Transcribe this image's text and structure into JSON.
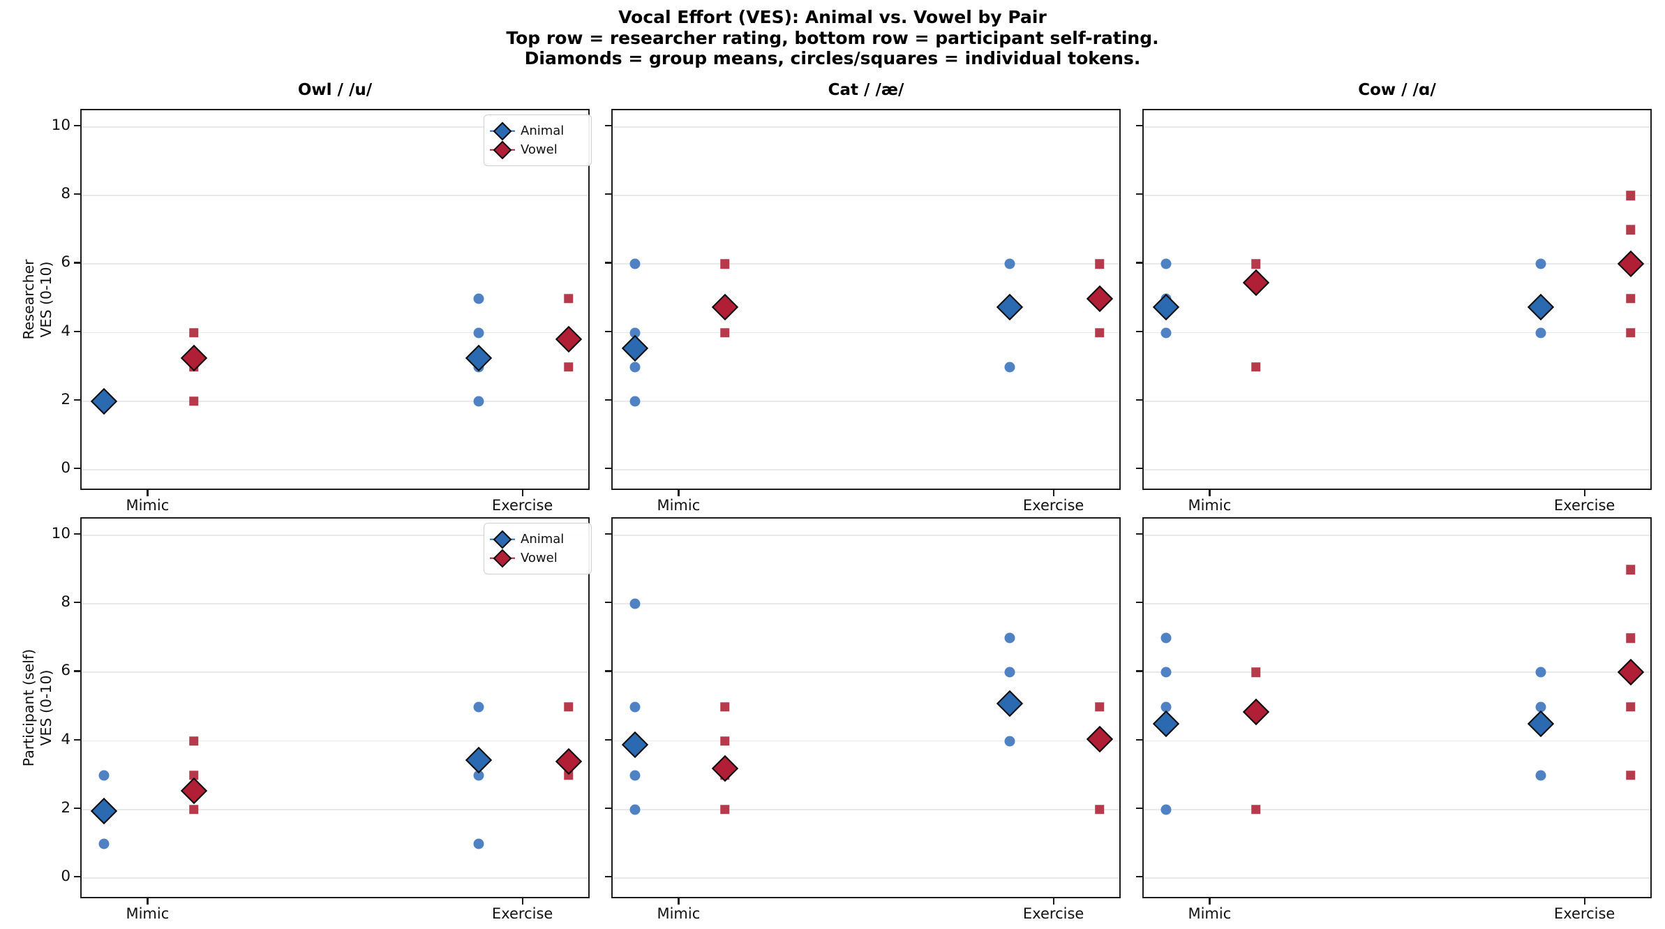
{
  "title": {
    "line1": "Vocal Effort (VES): Animal vs. Vowel by Pair",
    "line2": "Top row = researcher rating, bottom row = participant self-rating.",
    "line3": "Diamonds = group means, circles/squares = individual tokens."
  },
  "colors": {
    "animal_mean": "#2b69b0",
    "animal_token": "#4f81c3",
    "vowel_mean": "#b01f36",
    "vowel_token": "#b53a4b",
    "gridline": "#e9e9e9",
    "spine": "#1c1c1c",
    "text": "#111111"
  },
  "legend": {
    "items": [
      {
        "label": "Animal",
        "series": "Animal"
      },
      {
        "label": "Vowel",
        "series": "Vowel"
      }
    ]
  },
  "chart_data": {
    "type": "scatter",
    "figure_title": [
      "Vocal Effort (VES): Animal vs. Vowel by Pair",
      "Top row = researcher rating, bottom row = participant self-rating.",
      "Diamonds = group means, circles/squares = individual tokens."
    ],
    "panel_titles": [
      "Owl / /u/",
      "Cat / /æ/",
      "Cow / /ɑ/"
    ],
    "x_categories": [
      "Mimic",
      "Exercise"
    ],
    "y_ticks": [
      0,
      2,
      4,
      6,
      8,
      10
    ],
    "ylim": [
      -0.6,
      10.6
    ],
    "grid": "horizontal-only",
    "legend_position": "top-right of first column (both rows)",
    "series_styles": [
      {
        "name": "Animal",
        "token_marker": "circle",
        "mean_marker": "diamond"
      },
      {
        "name": "Vowel",
        "token_marker": "square",
        "mean_marker": "diamond"
      }
    ],
    "rows": [
      {
        "row_key": "researcher",
        "ylabel_lines": [
          "Researcher",
          "VES (0-10)"
        ],
        "panels": [
          {
            "panel_key": "owl",
            "groups": [
              {
                "condition": "Mimic",
                "series": "Animal",
                "tokens": [],
                "mean": 2.0
              },
              {
                "condition": "Mimic",
                "series": "Vowel",
                "tokens": [
                  4,
                  3,
                  2
                ],
                "mean": 3.25
              },
              {
                "condition": "Exercise",
                "series": "Animal",
                "tokens": [
                  5,
                  4,
                  3,
                  2
                ],
                "mean": 3.25
              },
              {
                "condition": "Exercise",
                "series": "Vowel",
                "tokens": [
                  5,
                  3
                ],
                "mean": 3.8
              }
            ]
          },
          {
            "panel_key": "cat",
            "groups": [
              {
                "condition": "Mimic",
                "series": "Animal",
                "tokens": [
                  6,
                  4,
                  3,
                  2
                ],
                "mean": 3.55
              },
              {
                "condition": "Mimic",
                "series": "Vowel",
                "tokens": [
                  6,
                  4
                ],
                "mean": 4.75
              },
              {
                "condition": "Exercise",
                "series": "Animal",
                "tokens": [
                  6,
                  3
                ],
                "mean": 4.75
              },
              {
                "condition": "Exercise",
                "series": "Vowel",
                "tokens": [
                  6,
                  4
                ],
                "mean": 5.0
              }
            ]
          },
          {
            "panel_key": "cow",
            "groups": [
              {
                "condition": "Mimic",
                "series": "Animal",
                "tokens": [
                  6,
                  5,
                  4
                ],
                "mean": 4.75
              },
              {
                "condition": "Mimic",
                "series": "Vowel",
                "tokens": [
                  6,
                  3
                ],
                "mean": 5.45
              },
              {
                "condition": "Exercise",
                "series": "Animal",
                "tokens": [
                  6,
                  4
                ],
                "mean": 4.75
              },
              {
                "condition": "Exercise",
                "series": "Vowel",
                "tokens": [
                  8,
                  7,
                  5,
                  4
                ],
                "mean": 6.0
              }
            ]
          }
        ]
      },
      {
        "row_key": "participant",
        "ylabel_lines": [
          "Participant (self)",
          "VES (0-10)"
        ],
        "panels": [
          {
            "panel_key": "owl",
            "groups": [
              {
                "condition": "Mimic",
                "series": "Animal",
                "tokens": [
                  3,
                  1
                ],
                "mean": 1.95
              },
              {
                "condition": "Mimic",
                "series": "Vowel",
                "tokens": [
                  4,
                  3,
                  2
                ],
                "mean": 2.55
              },
              {
                "condition": "Exercise",
                "series": "Animal",
                "tokens": [
                  5,
                  3,
                  1
                ],
                "mean": 3.45
              },
              {
                "condition": "Exercise",
                "series": "Vowel",
                "tokens": [
                  5,
                  3
                ],
                "mean": 3.4
              }
            ]
          },
          {
            "panel_key": "cat",
            "groups": [
              {
                "condition": "Mimic",
                "series": "Animal",
                "tokens": [
                  8,
                  5,
                  3,
                  2
                ],
                "mean": 3.9
              },
              {
                "condition": "Mimic",
                "series": "Vowel",
                "tokens": [
                  5,
                  4,
                  3,
                  2
                ],
                "mean": 3.2
              },
              {
                "condition": "Exercise",
                "series": "Animal",
                "tokens": [
                  7,
                  6,
                  4
                ],
                "mean": 5.1
              },
              {
                "condition": "Exercise",
                "series": "Vowel",
                "tokens": [
                  5,
                  2
                ],
                "mean": 4.05
              }
            ]
          },
          {
            "panel_key": "cow",
            "groups": [
              {
                "condition": "Mimic",
                "series": "Animal",
                "tokens": [
                  7,
                  6,
                  5,
                  2
                ],
                "mean": 4.5
              },
              {
                "condition": "Mimic",
                "series": "Vowel",
                "tokens": [
                  6,
                  2
                ],
                "mean": 4.85
              },
              {
                "condition": "Exercise",
                "series": "Animal",
                "tokens": [
                  6,
                  5,
                  3
                ],
                "mean": 4.5
              },
              {
                "condition": "Exercise",
                "series": "Vowel",
                "tokens": [
                  9,
                  7,
                  5,
                  3
                ],
                "mean": 6.0
              }
            ]
          }
        ]
      }
    ]
  }
}
